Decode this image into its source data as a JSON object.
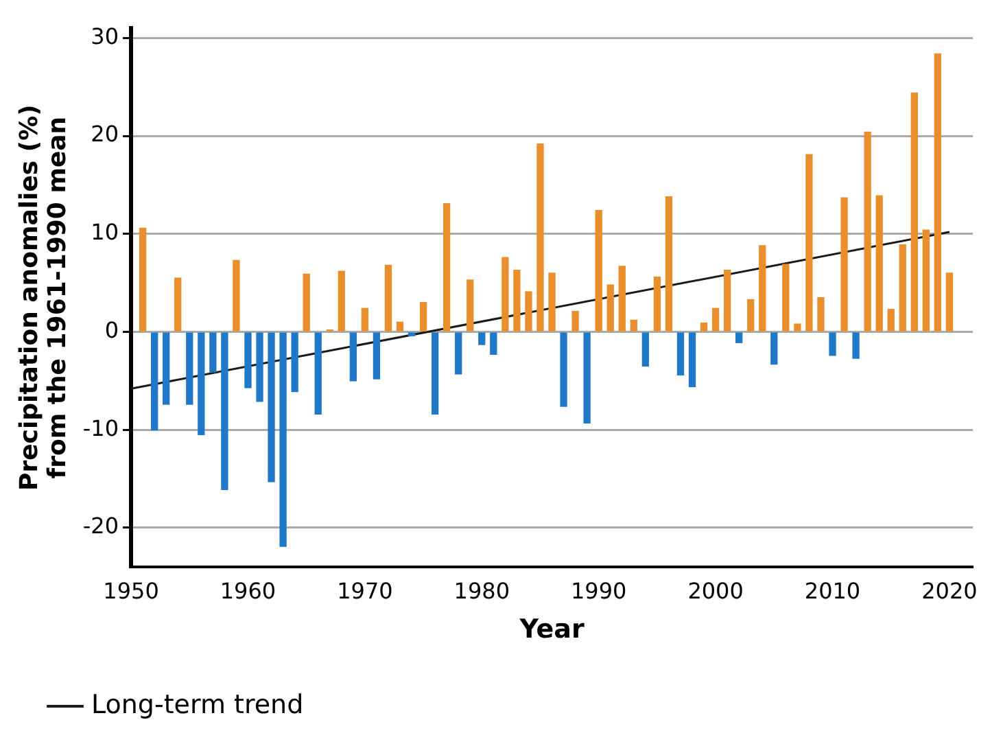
{
  "chart_data": {
    "type": "bar",
    "xlabel": "Year",
    "ylabel": "Precipitation anomalies (%) from the 1961-1990 mean",
    "x": [
      1951,
      1952,
      1953,
      1954,
      1955,
      1956,
      1957,
      1958,
      1959,
      1960,
      1961,
      1962,
      1963,
      1964,
      1965,
      1966,
      1967,
      1968,
      1969,
      1970,
      1971,
      1972,
      1973,
      1974,
      1975,
      1976,
      1977,
      1978,
      1979,
      1980,
      1981,
      1982,
      1983,
      1984,
      1985,
      1986,
      1987,
      1988,
      1989,
      1990,
      1991,
      1992,
      1993,
      1994,
      1995,
      1996,
      1997,
      1998,
      1999,
      2000,
      2001,
      2002,
      2003,
      2004,
      2005,
      2006,
      2007,
      2008,
      2009,
      2010,
      2011,
      2012,
      2013,
      2014,
      2015,
      2016,
      2017,
      2018,
      2019,
      2020
    ],
    "series": [
      {
        "values": [
          10.6,
          -10.0,
          -7.4,
          5.5,
          -7.4,
          -10.5,
          -4.1,
          -16.1,
          7.3,
          -5.7,
          -7.1,
          -15.3,
          -21.9,
          -6.1,
          5.9,
          -8.4,
          0.2,
          6.2,
          -5.0,
          2.4,
          -4.8,
          6.8,
          1.0,
          -0.4,
          3.0,
          -8.4,
          13.1,
          -4.3,
          5.3,
          -1.3,
          -2.3,
          7.6,
          6.3,
          4.1,
          19.2,
          6.0,
          -7.6,
          2.1,
          -9.3,
          12.4,
          4.8,
          6.7,
          1.2,
          -3.5,
          5.6,
          13.8,
          -4.4,
          -5.6,
          0.9,
          2.4,
          6.3,
          -1.1,
          3.3,
          8.8,
          -3.3,
          6.9,
          0.8,
          18.1,
          3.5,
          -2.4,
          13.7,
          -2.7,
          20.4,
          13.9,
          2.3,
          8.9,
          24.4,
          10.4,
          28.4,
          6.0
        ],
        "colors": [
          "#e88e2c",
          "#1f78c8",
          "#1f78c8",
          "#e88e2c",
          "#1f78c8",
          "#1f78c8",
          "#1f78c8",
          "#1f78c8",
          "#e88e2c",
          "#1f78c8",
          "#1f78c8",
          "#1f78c8",
          "#1f78c8",
          "#1f78c8",
          "#e88e2c",
          "#1f78c8",
          "#e88e2c",
          "#e88e2c",
          "#1f78c8",
          "#e88e2c",
          "#1f78c8",
          "#e88e2c",
          "#e88e2c",
          "#1f78c8",
          "#e88e2c",
          "#1f78c8",
          "#e88e2c",
          "#1f78c8",
          "#e88e2c",
          "#1f78c8",
          "#1f78c8",
          "#e88e2c",
          "#e88e2c",
          "#e88e2c",
          "#e88e2c",
          "#e88e2c",
          "#1f78c8",
          "#e88e2c",
          "#1f78c8",
          "#e88e2c",
          "#e88e2c",
          "#e88e2c",
          "#e88e2c",
          "#1f78c8",
          "#e88e2c",
          "#e88e2c",
          "#1f78c8",
          "#1f78c8",
          "#e88e2c",
          "#e88e2c",
          "#e88e2c",
          "#1f78c8",
          "#e88e2c",
          "#e88e2c",
          "#1f78c8",
          "#e88e2c",
          "#e88e2c",
          "#e88e2c",
          "#e88e2c",
          "#1f78c8",
          "#e88e2c",
          "#1f78c8",
          "#e88e2c",
          "#e88e2c",
          "#e88e2c",
          "#e88e2c",
          "#e88e2c",
          "#e88e2c",
          "#e88e2c",
          "#e88e2c"
        ]
      },
      {
        "type": "line",
        "name": "Long-term trend",
        "color": "#1a1a1a",
        "x": [
          1950,
          2020
        ],
        "values": [
          -5.8,
          10.2
        ]
      }
    ],
    "xlim": [
      1950,
      2022
    ],
    "xticks": [
      1950,
      1960,
      1970,
      1980,
      1990,
      2000,
      2010,
      2020
    ],
    "ylim": [
      -24,
      31
    ],
    "yticks": [
      -20,
      -10,
      0,
      10,
      20,
      30
    ],
    "grid": "y",
    "legend": "bottom left",
    "marker": "none",
    "line_style": "solid"
  }
}
